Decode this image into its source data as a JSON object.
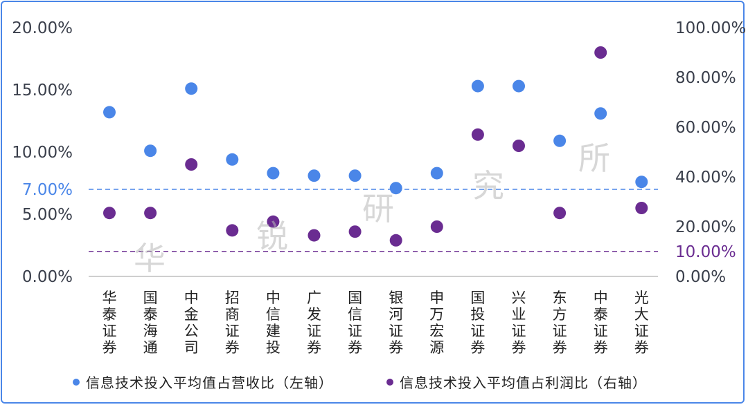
{
  "chart_data": {
    "type": "scatter",
    "categories": [
      "华泰证券",
      "国泰海通",
      "中金公司",
      "招商证券",
      "中信建投",
      "广发证券",
      "国信证券",
      "银河证券",
      "申万宏源",
      "国投证券",
      "兴业证券",
      "东方证券",
      "中泰证券",
      "光大证券"
    ],
    "series": [
      {
        "name": "信息技术投入平均值占营收比（左轴）",
        "axis": "left",
        "color": "#4a86e8",
        "values": [
          13.2,
          10.1,
          15.1,
          9.4,
          8.3,
          8.1,
          8.1,
          7.1,
          8.3,
          15.3,
          15.3,
          10.9,
          13.1,
          7.6
        ]
      },
      {
        "name": "信息技术投入平均值占利润比（右轴）",
        "axis": "right",
        "color": "#6a2c91",
        "values": [
          25.5,
          25.5,
          45.0,
          18.5,
          22.0,
          16.5,
          18.0,
          14.5,
          20.0,
          57.0,
          52.5,
          25.5,
          90.0,
          27.5
        ]
      }
    ],
    "left_axis": {
      "ylim": [
        0,
        20
      ],
      "ticks": [
        "0.00%",
        "5.00%",
        "10.00%",
        "15.00%",
        "20.00%"
      ],
      "tick_values": [
        0,
        5,
        10,
        15,
        20
      ]
    },
    "right_axis": {
      "ylim": [
        0,
        100
      ],
      "ticks": [
        "0.00%",
        "20.00%",
        "40.00%",
        "60.00%",
        "80.00%",
        "100.00%"
      ],
      "tick_values": [
        0,
        20,
        40,
        60,
        80,
        100
      ]
    },
    "reference_lines": [
      {
        "axis": "left",
        "value": 7,
        "label": "7.00%",
        "color": "#4a86e8"
      },
      {
        "axis": "right",
        "value": 10,
        "label": "10.00%",
        "color": "#6a2c91"
      }
    ],
    "legend_position": "bottom",
    "grid": false
  },
  "watermark": [
    "华",
    "锐",
    "研",
    "究",
    "所"
  ]
}
